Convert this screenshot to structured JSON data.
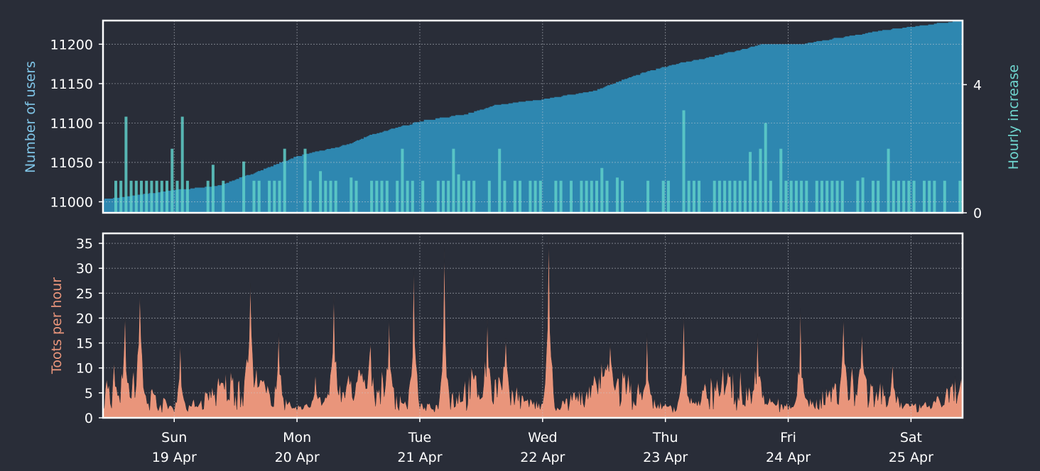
{
  "colors": {
    "background": "#292d38",
    "frame": "#ffffff",
    "grid": "#c8ccd4",
    "tick_text": "#ffffff",
    "users_area": "#2e87b0",
    "users_label": "#7fc4e6",
    "hourly_bars": "#5fcfc9",
    "hourly_label": "#6fd6cf",
    "toots_area": "#e9957b",
    "toots_label": "#e9957b"
  },
  "chart_data": [
    {
      "type": "area",
      "title": "",
      "xlabel": "",
      "ylabel": "Number of users",
      "ylim": [
        10986,
        11230
      ],
      "yticks": [
        11000,
        11050,
        11100,
        11150,
        11200
      ],
      "grid": true,
      "x_unit": "days since 18 Apr 00:00",
      "xlim": [
        0.42,
        7.42
      ],
      "series": [
        {
          "name": "",
          "axis": "left",
          "x": [
            0.42,
            0.7,
            1.0,
            1.35,
            1.62,
            2.0,
            2.4,
            2.6,
            3.0,
            3.4,
            3.6,
            4.0,
            4.4,
            4.8,
            5.0,
            5.4,
            5.8,
            6.0,
            6.4,
            6.8,
            7.42
          ],
          "values": [
            11003,
            11008,
            11015,
            11020,
            11035,
            11058,
            11072,
            11085,
            11102,
            11112,
            11122,
            11130,
            11140,
            11163,
            11172,
            11185,
            11200,
            11197,
            11208,
            11218,
            11230
          ]
        }
      ],
      "secondary_axis": {
        "ylabel": "Hourly increase",
        "ylim": [
          0,
          6
        ],
        "yticks": [
          0,
          4
        ],
        "series": {
          "name": "",
          "type": "bar",
          "peaks": [
            [
              0.6,
              3
            ],
            [
              1.05,
              3
            ],
            [
              1.32,
              1.5
            ],
            [
              1.58,
              1.6
            ],
            [
              2.2,
              1.3
            ],
            [
              2.45,
              1.1
            ],
            [
              3.3,
              1.2
            ],
            [
              3.45,
              1.0
            ],
            [
              4.5,
              1.4
            ],
            [
              4.6,
              1.1
            ],
            [
              5.15,
              3.2
            ],
            [
              5.8,
              2.8
            ],
            [
              5.68,
              1.9
            ],
            [
              6.6,
              1.1
            ]
          ]
        }
      }
    },
    {
      "type": "area",
      "title": "",
      "xlabel": "",
      "ylabel": "Toots per hour",
      "ylim": [
        0,
        37
      ],
      "yticks": [
        0,
        5,
        10,
        15,
        20,
        25,
        30,
        35
      ],
      "grid": true,
      "x_unit": "days since 18 Apr 00:00",
      "xlim": [
        0.42,
        7.42
      ],
      "series": [
        {
          "name": "",
          "peaks": [
            [
              0.6,
              21
            ],
            [
              0.72,
              25
            ],
            [
              1.05,
              15
            ],
            [
              1.3,
              4
            ],
            [
              1.62,
              27
            ],
            [
              1.85,
              17
            ],
            [
              2.15,
              9
            ],
            [
              2.3,
              25
            ],
            [
              2.6,
              15
            ],
            [
              2.75,
              20
            ],
            [
              2.95,
              30
            ],
            [
              3.2,
              34
            ],
            [
              3.55,
              20
            ],
            [
              3.7,
              16
            ],
            [
              4.05,
              37
            ],
            [
              4.25,
              5
            ],
            [
              4.55,
              15
            ],
            [
              4.85,
              17
            ],
            [
              5.15,
              21
            ],
            [
              5.5,
              7
            ],
            [
              5.75,
              17
            ],
            [
              6.1,
              22
            ],
            [
              6.45,
              20
            ],
            [
              6.6,
              17
            ],
            [
              6.85,
              11
            ],
            [
              7.25,
              2
            ]
          ]
        }
      ]
    }
  ],
  "x_axis": {
    "ticks": [
      {
        "pos": 1,
        "day": "Sun",
        "date": "19 Apr"
      },
      {
        "pos": 2,
        "day": "Mon",
        "date": "20 Apr"
      },
      {
        "pos": 3,
        "day": "Tue",
        "date": "21 Apr"
      },
      {
        "pos": 4,
        "day": "Wed",
        "date": "22 Apr"
      },
      {
        "pos": 5,
        "day": "Thu",
        "date": "23 Apr"
      },
      {
        "pos": 6,
        "day": "Fri",
        "date": "24 Apr"
      },
      {
        "pos": 7,
        "day": "Sat",
        "date": "25 Apr"
      }
    ]
  }
}
